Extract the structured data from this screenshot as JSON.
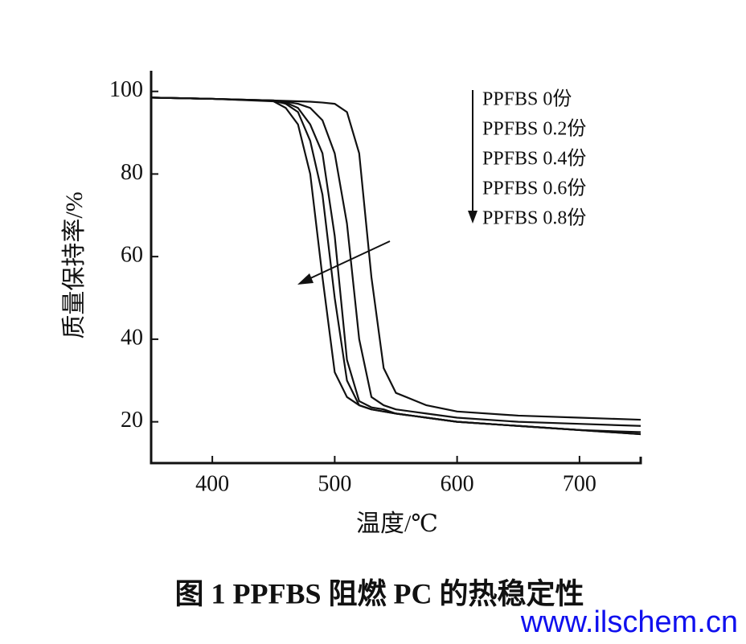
{
  "chart_data": {
    "type": "line",
    "title": "图 1  PPFBS 阻燃 PC 的热稳定性",
    "x_label": "温度/℃",
    "y_label": "质量保持率/%",
    "x": [
      350,
      400,
      450,
      460,
      470,
      480,
      490,
      500,
      510,
      520,
      530,
      540,
      550,
      575,
      600,
      650,
      700,
      750
    ],
    "series": [
      {
        "name": "PPFBS 0份",
        "color": "#111111",
        "values": [
          98.5,
          98.2,
          97.8,
          97.7,
          97.6,
          97.5,
          97.3,
          97,
          95,
          85,
          55,
          33,
          27,
          24,
          22.5,
          21.5,
          21,
          20.5
        ]
      },
      {
        "name": "PPFBS 0.2份",
        "color": "#111111",
        "values": [
          98.5,
          98.2,
          97.8,
          97.5,
          97,
          96,
          93,
          85,
          68,
          40,
          26,
          24,
          23,
          22,
          21,
          20,
          19.5,
          19
        ]
      },
      {
        "name": "PPFBS 0.4份",
        "color": "#111111",
        "values": [
          98.5,
          98.2,
          97.8,
          97.3,
          96,
          92,
          85,
          65,
          35,
          25,
          23.5,
          23,
          22,
          21,
          20,
          19,
          18,
          17.5
        ]
      },
      {
        "name": "PPFBS 0.6份",
        "color": "#111111",
        "values": [
          98.5,
          98.2,
          97.7,
          97,
          95,
          88,
          75,
          50,
          30,
          24,
          23,
          22.5,
          22,
          21,
          20,
          19,
          18,
          17
        ]
      },
      {
        "name": "PPFBS 0.8份",
        "color": "#111111",
        "values": [
          98.5,
          98.2,
          97.6,
          96,
          92,
          80,
          55,
          32,
          26,
          24,
          23,
          22.5,
          22,
          21,
          20,
          19,
          18,
          17
        ]
      }
    ],
    "xlim": [
      350,
      750
    ],
    "ylim": [
      10,
      105
    ],
    "xticks": [
      400,
      500,
      600,
      700
    ],
    "yticks": [
      20,
      40,
      60,
      80,
      100
    ]
  },
  "watermark": "www.ilschem.cn"
}
